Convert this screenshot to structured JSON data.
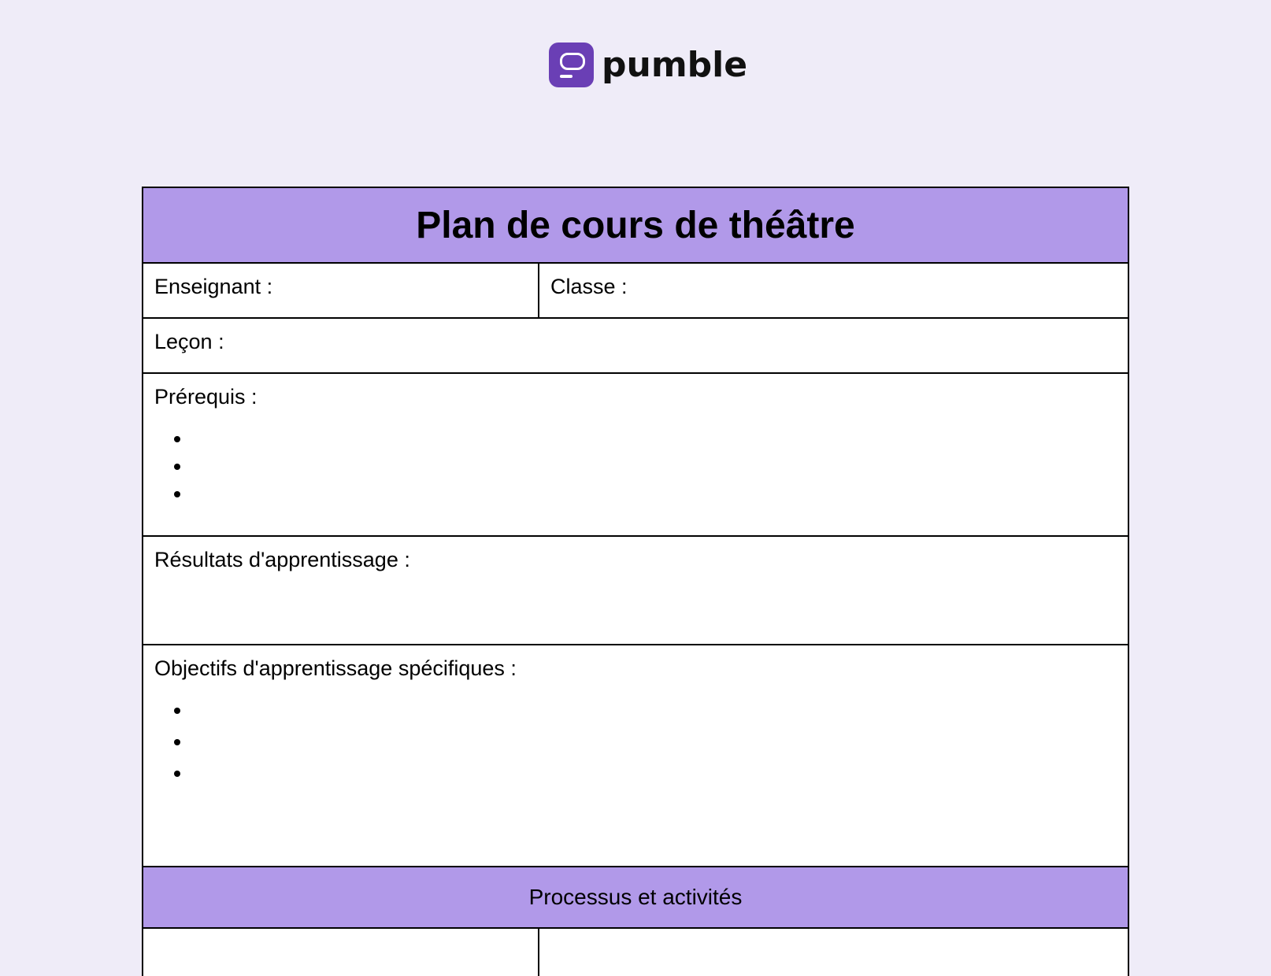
{
  "brand": {
    "name": "pumble",
    "accent": "#6a3fb5"
  },
  "document": {
    "title": "Plan de cours de théâtre",
    "header_color": "#b199e9",
    "fields": {
      "teacher": "Enseignant :",
      "class": "Classe :",
      "lesson": "Leçon :",
      "prerequisites": "Prérequis :",
      "learning_outcomes": "Résultats d'apprentissage :",
      "specific_objectives": "Objectifs d'apprentissage spécifiques :"
    },
    "section_process": "Processus et activités"
  }
}
